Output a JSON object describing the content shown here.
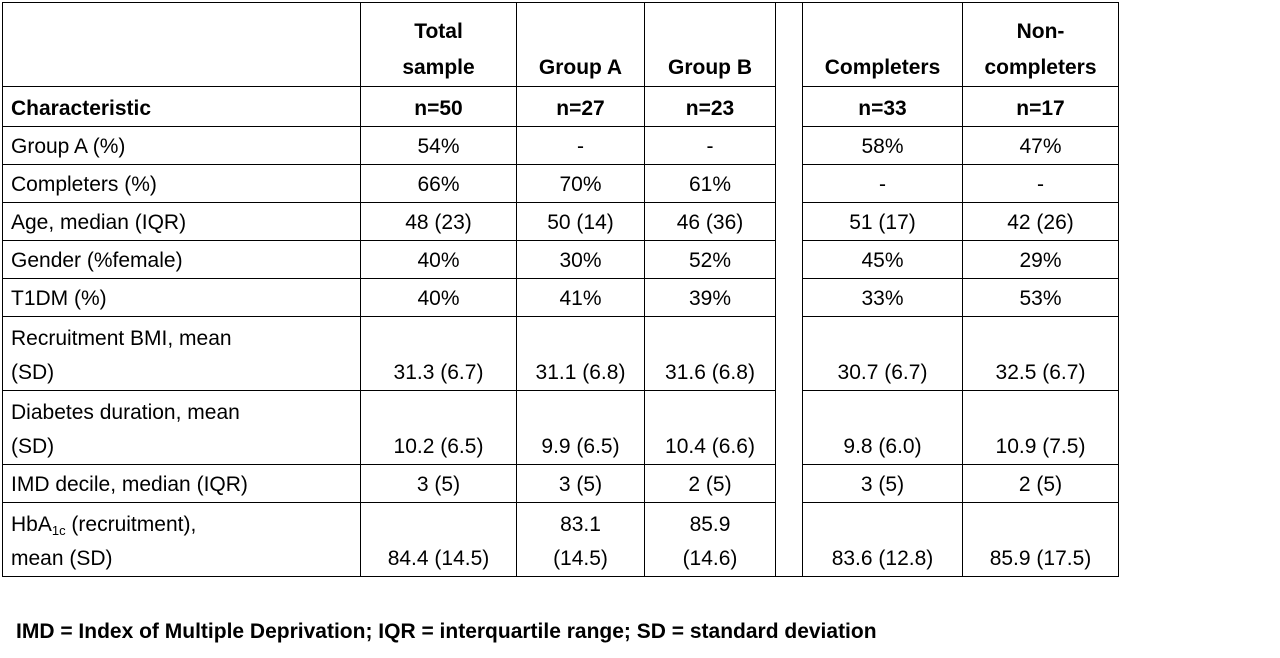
{
  "header": {
    "characteristic": "Characteristic",
    "columns": [
      {
        "title": "Total\nsample",
        "n": "n=50"
      },
      {
        "title": "Group A",
        "n": "n=27"
      },
      {
        "title": "Group B",
        "n": "n=23"
      },
      {
        "title": "Completers",
        "n": "n=33"
      },
      {
        "title": "Non-\ncompleters",
        "n": "n=17"
      }
    ]
  },
  "rows": [
    {
      "label": "Group A (%)",
      "values": [
        "54%",
        "-",
        "-",
        "58%",
        "47%"
      ]
    },
    {
      "label": "Completers (%)",
      "values": [
        "66%",
        "70%",
        "61%",
        "-",
        "-"
      ]
    },
    {
      "label": "Age, median (IQR)",
      "values": [
        "48 (23)",
        "50 (14)",
        "46 (36)",
        "51 (17)",
        "42 (26)"
      ]
    },
    {
      "label": "Gender (%female)",
      "values": [
        "40%",
        "30%",
        "52%",
        "45%",
        "29%"
      ]
    },
    {
      "label": "T1DM (%)",
      "values": [
        "40%",
        "41%",
        "39%",
        "33%",
        "53%"
      ]
    },
    {
      "label": "Recruitment BMI, mean\n(SD)",
      "values": [
        "31.3 (6.7)",
        "31.1 (6.8)",
        "31.6 (6.8)",
        "30.7 (6.7)",
        "32.5 (6.7)"
      ]
    },
    {
      "label": "Diabetes duration, mean\n(SD)",
      "values": [
        "10.2 (6.5)",
        "9.9 (6.5)",
        "10.4 (6.6)",
        "9.8 (6.0)",
        "10.9 (7.5)"
      ]
    },
    {
      "label": "IMD decile, median (IQR)",
      "values": [
        "3 (5)",
        "3 (5)",
        "2 (5)",
        "3 (5)",
        "2 (5)"
      ]
    },
    {
      "label_main": "HbA",
      "label_sub": "1c",
      "label_rest": " (recruitment),\nmean (SD)",
      "values": [
        "84.4 (14.5)",
        "83.1\n(14.5)",
        "85.9\n(14.6)",
        "83.6 (12.8)",
        "85.9 (17.5)"
      ]
    }
  ],
  "footnote": "IMD = Index of Multiple Deprivation; IQR = interquartile range; SD = standard deviation"
}
